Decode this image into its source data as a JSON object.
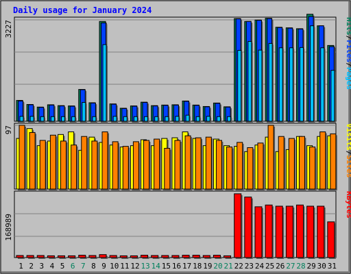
{
  "chart_data": [
    {
      "type": "bar",
      "title": "Daily usage for January 2024",
      "categories": [
        "1",
        "2",
        "3",
        "4",
        "5",
        "6",
        "7",
        "8",
        "9",
        "10",
        "11",
        "12",
        "13",
        "14",
        "15",
        "16",
        "17",
        "18",
        "19",
        "20",
        "21",
        "22",
        "23",
        "24",
        "25",
        "26",
        "27",
        "28",
        "29",
        "30",
        "31"
      ],
      "weekend_days": [
        "6",
        "7",
        "13",
        "14",
        "20",
        "21",
        "27",
        "28"
      ],
      "ylim": [
        0,
        3600
      ],
      "ytick_label": "3227",
      "series": [
        {
          "name": "Hits",
          "color": "#00805c",
          "values": [
            720,
            580,
            490,
            570,
            540,
            530,
            1100,
            640,
            3450,
            600,
            450,
            530,
            660,
            540,
            560,
            570,
            700,
            560,
            510,
            630,
            500,
            3550,
            3450,
            3500,
            3560,
            3250,
            3230,
            3200,
            3700,
            3300,
            2620
          ]
        },
        {
          "name": "Files",
          "color": "#0040ff",
          "values": [
            700,
            570,
            480,
            560,
            530,
            520,
            1090,
            630,
            3400,
            590,
            440,
            520,
            650,
            530,
            550,
            560,
            690,
            550,
            500,
            620,
            490,
            3540,
            3450,
            3490,
            3550,
            3240,
            3220,
            3190,
            3620,
            3300,
            2580
          ]
        },
        {
          "name": "Pages",
          "color": "#00c0ff",
          "values": [
            170,
            170,
            160,
            160,
            160,
            160,
            650,
            160,
            2650,
            170,
            160,
            160,
            160,
            160,
            160,
            170,
            210,
            160,
            170,
            160,
            160,
            2450,
            2760,
            2460,
            2690,
            2540,
            2540,
            2550,
            3300,
            2540,
            1760
          ]
        }
      ],
      "axis_label_separator": "/"
    },
    {
      "type": "bar",
      "categories": [
        "1",
        "2",
        "3",
        "4",
        "5",
        "6",
        "7",
        "8",
        "9",
        "10",
        "11",
        "12",
        "13",
        "14",
        "15",
        "16",
        "17",
        "18",
        "19",
        "20",
        "21",
        "22",
        "23",
        "24",
        "25",
        "26",
        "27",
        "28",
        "29",
        "30",
        "31"
      ],
      "ylim": [
        0,
        100
      ],
      "ytick_label": "97",
      "series": [
        {
          "name": "Visits",
          "color": "#ffff00",
          "values": [
            77,
            92,
            66,
            73,
            83,
            87,
            59,
            79,
            71,
            67,
            64,
            66,
            75,
            66,
            77,
            78,
            87,
            77,
            66,
            76,
            66,
            65,
            57,
            67,
            79,
            57,
            60,
            80,
            66,
            80,
            81
          ]
        },
        {
          "name": "Sites",
          "color": "#ff8000",
          "values": [
            97,
            86,
            74,
            82,
            73,
            67,
            80,
            73,
            87,
            72,
            65,
            72,
            74,
            76,
            62,
            74,
            81,
            78,
            79,
            74,
            64,
            71,
            63,
            70,
            97,
            80,
            77,
            80,
            64,
            87,
            84
          ]
        }
      ],
      "axis_label_separator": "/"
    },
    {
      "type": "bar",
      "categories": [
        "1",
        "2",
        "3",
        "4",
        "5",
        "6",
        "7",
        "8",
        "9",
        "10",
        "11",
        "12",
        "13",
        "14",
        "15",
        "16",
        "17",
        "18",
        "19",
        "20",
        "21",
        "22",
        "23",
        "24",
        "25",
        "26",
        "27",
        "28",
        "29",
        "30",
        "31"
      ],
      "ylim": [
        0,
        225000
      ],
      "ytick_label": "168989",
      "series": [
        {
          "name": "KBytes",
          "color": "#ff0000",
          "values": [
            7000,
            7000,
            7000,
            6000,
            6000,
            6000,
            8000,
            7000,
            10000,
            7000,
            6000,
            6000,
            8000,
            7000,
            7000,
            7000,
            8000,
            8000,
            7000,
            8000,
            6000,
            216000,
            205000,
            172000,
            178000,
            174000,
            174000,
            178000,
            174000,
            174000,
            121000
          ]
        }
      ]
    }
  ]
}
